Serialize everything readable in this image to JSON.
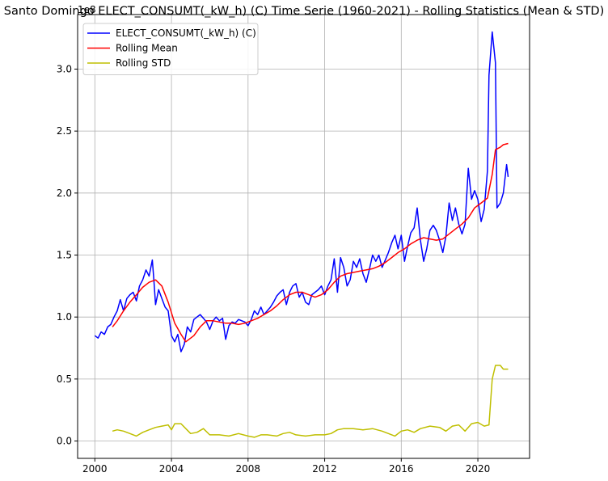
{
  "chart_data": {
    "type": "line",
    "title": "Santo Domingo ELECT_CONSUMT(_kW_h) (C) Time Serie (1960-2021) - Rolling Statistics (Mean & STD)",
    "offset_label": "1e8",
    "xlabel": "",
    "ylabel": "",
    "xlim": [
      1999.1,
      2022.7
    ],
    "ylim": [
      -0.14,
      3.44
    ],
    "x_ticks": [
      2000,
      2004,
      2008,
      2012,
      2016,
      2020
    ],
    "y_ticks": [
      0.0,
      0.5,
      1.0,
      1.5,
      2.0,
      2.5,
      3.0
    ],
    "y_tick_labels": [
      "0.0",
      "0.5",
      "1.0",
      "1.5",
      "2.0",
      "2.5",
      "3.0"
    ],
    "grid": true,
    "legend_position": "upper left",
    "series": [
      {
        "name": "ELECT_CONSUMT(_kW_h) (C)",
        "color": "#0000ff",
        "points": [
          [
            2000.0,
            0.85
          ],
          [
            2000.17,
            0.83
          ],
          [
            2000.33,
            0.88
          ],
          [
            2000.5,
            0.86
          ],
          [
            2000.67,
            0.92
          ],
          [
            2000.83,
            0.94
          ],
          [
            2001.0,
            1.0
          ],
          [
            2001.17,
            1.05
          ],
          [
            2001.33,
            1.14
          ],
          [
            2001.5,
            1.05
          ],
          [
            2001.67,
            1.15
          ],
          [
            2001.83,
            1.18
          ],
          [
            2002.0,
            1.2
          ],
          [
            2002.17,
            1.13
          ],
          [
            2002.33,
            1.25
          ],
          [
            2002.5,
            1.3
          ],
          [
            2002.67,
            1.38
          ],
          [
            2002.83,
            1.33
          ],
          [
            2003.0,
            1.46
          ],
          [
            2003.08,
            1.3
          ],
          [
            2003.17,
            1.1
          ],
          [
            2003.33,
            1.22
          ],
          [
            2003.5,
            1.15
          ],
          [
            2003.67,
            1.08
          ],
          [
            2003.83,
            1.05
          ],
          [
            2004.0,
            0.85
          ],
          [
            2004.17,
            0.8
          ],
          [
            2004.33,
            0.86
          ],
          [
            2004.5,
            0.72
          ],
          [
            2004.67,
            0.78
          ],
          [
            2004.83,
            0.92
          ],
          [
            2005.0,
            0.88
          ],
          [
            2005.17,
            0.98
          ],
          [
            2005.33,
            1.0
          ],
          [
            2005.5,
            1.02
          ],
          [
            2005.67,
            0.99
          ],
          [
            2005.83,
            0.96
          ],
          [
            2006.0,
            0.9
          ],
          [
            2006.17,
            0.97
          ],
          [
            2006.33,
            1.0
          ],
          [
            2006.5,
            0.97
          ],
          [
            2006.67,
            0.99
          ],
          [
            2006.83,
            0.82
          ],
          [
            2007.0,
            0.93
          ],
          [
            2007.17,
            0.96
          ],
          [
            2007.33,
            0.95
          ],
          [
            2007.5,
            0.98
          ],
          [
            2007.67,
            0.97
          ],
          [
            2007.83,
            0.96
          ],
          [
            2008.0,
            0.93
          ],
          [
            2008.17,
            0.98
          ],
          [
            2008.33,
            1.05
          ],
          [
            2008.5,
            1.02
          ],
          [
            2008.67,
            1.08
          ],
          [
            2008.83,
            1.02
          ],
          [
            2009.0,
            1.05
          ],
          [
            2009.17,
            1.08
          ],
          [
            2009.33,
            1.12
          ],
          [
            2009.5,
            1.17
          ],
          [
            2009.67,
            1.2
          ],
          [
            2009.83,
            1.22
          ],
          [
            2010.0,
            1.1
          ],
          [
            2010.17,
            1.2
          ],
          [
            2010.33,
            1.25
          ],
          [
            2010.5,
            1.27
          ],
          [
            2010.67,
            1.16
          ],
          [
            2010.83,
            1.2
          ],
          [
            2011.0,
            1.12
          ],
          [
            2011.17,
            1.1
          ],
          [
            2011.33,
            1.18
          ],
          [
            2011.5,
            1.2
          ],
          [
            2011.67,
            1.22
          ],
          [
            2011.83,
            1.25
          ],
          [
            2012.0,
            1.18
          ],
          [
            2012.17,
            1.25
          ],
          [
            2012.33,
            1.3
          ],
          [
            2012.5,
            1.47
          ],
          [
            2012.67,
            1.2
          ],
          [
            2012.83,
            1.48
          ],
          [
            2013.0,
            1.4
          ],
          [
            2013.17,
            1.25
          ],
          [
            2013.33,
            1.3
          ],
          [
            2013.5,
            1.45
          ],
          [
            2013.67,
            1.4
          ],
          [
            2013.83,
            1.47
          ],
          [
            2014.0,
            1.35
          ],
          [
            2014.17,
            1.28
          ],
          [
            2014.33,
            1.38
          ],
          [
            2014.5,
            1.5
          ],
          [
            2014.67,
            1.45
          ],
          [
            2014.83,
            1.5
          ],
          [
            2015.0,
            1.4
          ],
          [
            2015.17,
            1.46
          ],
          [
            2015.33,
            1.52
          ],
          [
            2015.5,
            1.6
          ],
          [
            2015.67,
            1.66
          ],
          [
            2015.83,
            1.55
          ],
          [
            2016.0,
            1.66
          ],
          [
            2016.17,
            1.45
          ],
          [
            2016.33,
            1.57
          ],
          [
            2016.5,
            1.68
          ],
          [
            2016.67,
            1.72
          ],
          [
            2016.83,
            1.88
          ],
          [
            2017.0,
            1.62
          ],
          [
            2017.17,
            1.45
          ],
          [
            2017.33,
            1.55
          ],
          [
            2017.5,
            1.7
          ],
          [
            2017.67,
            1.74
          ],
          [
            2017.83,
            1.7
          ],
          [
            2018.0,
            1.62
          ],
          [
            2018.17,
            1.52
          ],
          [
            2018.33,
            1.65
          ],
          [
            2018.5,
            1.92
          ],
          [
            2018.67,
            1.78
          ],
          [
            2018.83,
            1.88
          ],
          [
            2019.0,
            1.75
          ],
          [
            2019.17,
            1.67
          ],
          [
            2019.33,
            1.75
          ],
          [
            2019.5,
            2.2
          ],
          [
            2019.67,
            1.95
          ],
          [
            2019.83,
            2.02
          ],
          [
            2020.0,
            1.95
          ],
          [
            2020.17,
            1.77
          ],
          [
            2020.33,
            1.87
          ],
          [
            2020.5,
            2.18
          ],
          [
            2020.58,
            2.95
          ],
          [
            2020.75,
            3.3
          ],
          [
            2020.92,
            3.05
          ],
          [
            2021.0,
            1.88
          ],
          [
            2021.17,
            1.92
          ],
          [
            2021.33,
            2.0
          ],
          [
            2021.5,
            2.23
          ],
          [
            2021.58,
            2.13
          ]
        ]
      },
      {
        "name": "Rolling Mean",
        "color": "#ff0000",
        "points": [
          [
            2000.92,
            0.92
          ],
          [
            2001.17,
            0.97
          ],
          [
            2001.5,
            1.05
          ],
          [
            2001.83,
            1.12
          ],
          [
            2002.17,
            1.18
          ],
          [
            2002.5,
            1.24
          ],
          [
            2002.83,
            1.28
          ],
          [
            2003.17,
            1.3
          ],
          [
            2003.5,
            1.25
          ],
          [
            2003.83,
            1.12
          ],
          [
            2004.17,
            0.95
          ],
          [
            2004.5,
            0.86
          ],
          [
            2004.75,
            0.8
          ],
          [
            2005.17,
            0.85
          ],
          [
            2005.5,
            0.92
          ],
          [
            2005.83,
            0.97
          ],
          [
            2006.17,
            0.97
          ],
          [
            2006.5,
            0.96
          ],
          [
            2006.83,
            0.95
          ],
          [
            2007.17,
            0.95
          ],
          [
            2007.5,
            0.94
          ],
          [
            2007.83,
            0.95
          ],
          [
            2008.17,
            0.97
          ],
          [
            2008.5,
            0.99
          ],
          [
            2008.83,
            1.02
          ],
          [
            2009.17,
            1.05
          ],
          [
            2009.5,
            1.09
          ],
          [
            2009.83,
            1.14
          ],
          [
            2010.17,
            1.18
          ],
          [
            2010.5,
            1.2
          ],
          [
            2010.83,
            1.2
          ],
          [
            2011.17,
            1.18
          ],
          [
            2011.5,
            1.16
          ],
          [
            2011.83,
            1.18
          ],
          [
            2012.17,
            1.22
          ],
          [
            2012.5,
            1.28
          ],
          [
            2012.83,
            1.33
          ],
          [
            2013.17,
            1.35
          ],
          [
            2013.5,
            1.36
          ],
          [
            2013.83,
            1.37
          ],
          [
            2014.17,
            1.38
          ],
          [
            2014.5,
            1.39
          ],
          [
            2014.83,
            1.41
          ],
          [
            2015.17,
            1.44
          ],
          [
            2015.5,
            1.48
          ],
          [
            2015.83,
            1.52
          ],
          [
            2016.17,
            1.55
          ],
          [
            2016.5,
            1.59
          ],
          [
            2016.83,
            1.62
          ],
          [
            2017.17,
            1.64
          ],
          [
            2017.5,
            1.63
          ],
          [
            2017.83,
            1.62
          ],
          [
            2018.17,
            1.63
          ],
          [
            2018.5,
            1.67
          ],
          [
            2018.83,
            1.71
          ],
          [
            2019.17,
            1.75
          ],
          [
            2019.5,
            1.8
          ],
          [
            2019.83,
            1.88
          ],
          [
            2020.17,
            1.92
          ],
          [
            2020.5,
            1.96
          ],
          [
            2020.75,
            2.15
          ],
          [
            2020.92,
            2.35
          ],
          [
            2021.17,
            2.37
          ],
          [
            2021.33,
            2.39
          ],
          [
            2021.58,
            2.4
          ]
        ]
      },
      {
        "name": "Rolling STD",
        "color": "#bfbf00",
        "points": [
          [
            2000.92,
            0.08
          ],
          [
            2001.17,
            0.09
          ],
          [
            2001.5,
            0.08
          ],
          [
            2001.83,
            0.06
          ],
          [
            2002.17,
            0.04
          ],
          [
            2002.5,
            0.07
          ],
          [
            2002.83,
            0.09
          ],
          [
            2003.17,
            0.11
          ],
          [
            2003.5,
            0.12
          ],
          [
            2003.83,
            0.13
          ],
          [
            2004.0,
            0.09
          ],
          [
            2004.17,
            0.14
          ],
          [
            2004.5,
            0.14
          ],
          [
            2004.75,
            0.1
          ],
          [
            2005.0,
            0.06
          ],
          [
            2005.33,
            0.07
          ],
          [
            2005.67,
            0.1
          ],
          [
            2006.0,
            0.05
          ],
          [
            2006.5,
            0.05
          ],
          [
            2007.0,
            0.04
          ],
          [
            2007.5,
            0.06
          ],
          [
            2008.0,
            0.04
          ],
          [
            2008.33,
            0.03
          ],
          [
            2008.67,
            0.05
          ],
          [
            2009.0,
            0.05
          ],
          [
            2009.5,
            0.04
          ],
          [
            2009.83,
            0.06
          ],
          [
            2010.17,
            0.07
          ],
          [
            2010.5,
            0.05
          ],
          [
            2011.0,
            0.04
          ],
          [
            2011.5,
            0.05
          ],
          [
            2012.0,
            0.05
          ],
          [
            2012.33,
            0.06
          ],
          [
            2012.67,
            0.09
          ],
          [
            2013.0,
            0.1
          ],
          [
            2013.5,
            0.1
          ],
          [
            2014.0,
            0.09
          ],
          [
            2014.5,
            0.1
          ],
          [
            2015.0,
            0.08
          ],
          [
            2015.33,
            0.06
          ],
          [
            2015.67,
            0.04
          ],
          [
            2016.0,
            0.08
          ],
          [
            2016.33,
            0.09
          ],
          [
            2016.67,
            0.07
          ],
          [
            2017.0,
            0.1
          ],
          [
            2017.5,
            0.12
          ],
          [
            2018.0,
            0.11
          ],
          [
            2018.33,
            0.08
          ],
          [
            2018.67,
            0.12
          ],
          [
            2019.0,
            0.13
          ],
          [
            2019.33,
            0.08
          ],
          [
            2019.67,
            0.14
          ],
          [
            2020.0,
            0.15
          ],
          [
            2020.33,
            0.12
          ],
          [
            2020.58,
            0.13
          ],
          [
            2020.75,
            0.5
          ],
          [
            2020.92,
            0.61
          ],
          [
            2021.17,
            0.61
          ],
          [
            2021.33,
            0.58
          ],
          [
            2021.58,
            0.58
          ]
        ]
      }
    ]
  }
}
